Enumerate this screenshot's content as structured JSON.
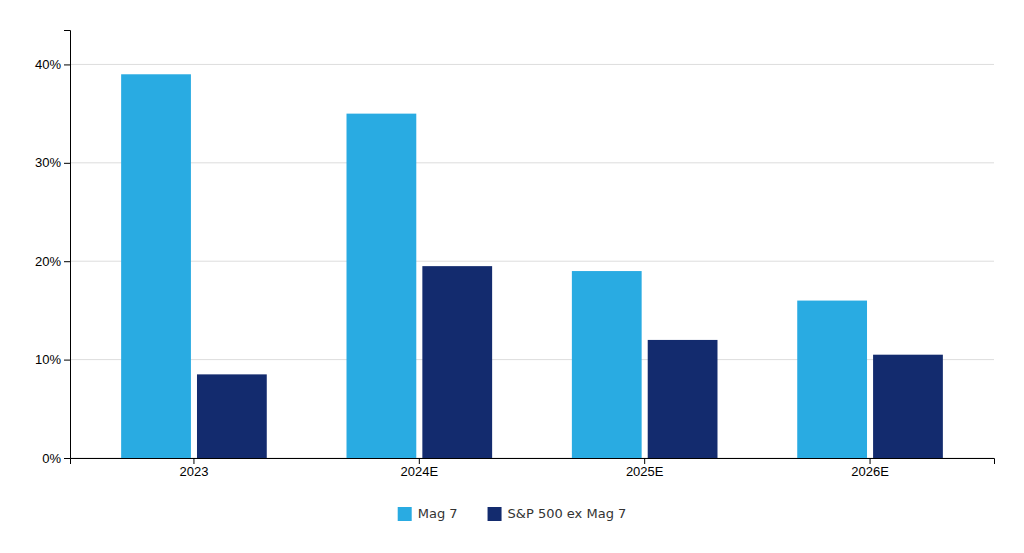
{
  "chart_data": {
    "type": "bar",
    "categories": [
      "2023",
      "2024E",
      "2025E",
      "2026E"
    ],
    "series": [
      {
        "name": "Mag 7",
        "color": "#29ABE2",
        "values": [
          0.39,
          0.35,
          0.19,
          0.16
        ]
      },
      {
        "name": "S&P 500 ex Mag 7",
        "color": "#132B6E",
        "values": [
          0.085,
          0.195,
          0.12,
          0.105
        ]
      }
    ],
    "ylim": [
      0,
      0.435
    ],
    "yticks": [
      {
        "value": 0.0,
        "label": "0%"
      },
      {
        "value": 0.1,
        "label": "10%"
      },
      {
        "value": 0.2,
        "label": "20%"
      },
      {
        "value": 0.3,
        "label": "30%"
      },
      {
        "value": 0.4,
        "label": "40%"
      }
    ],
    "grid": true,
    "legend": "bottom"
  }
}
